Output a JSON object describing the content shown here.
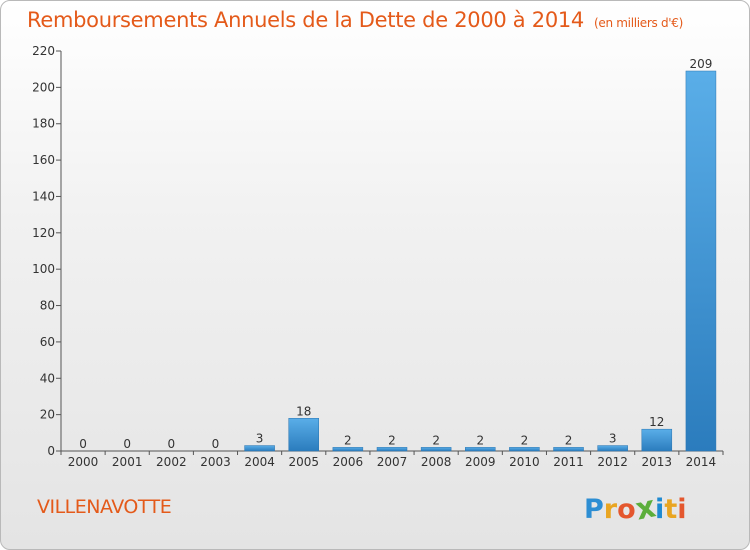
{
  "header": {
    "title": "Remboursements Annuels de la Dette de 2000 à 2014",
    "units": "(en milliers d'€)"
  },
  "footer": {
    "city": "VILLENAVOTTE",
    "logo_letters": [
      "P",
      "r",
      "o",
      "x",
      "i",
      "t",
      "i"
    ],
    "logo_colors": [
      "#2d8ed3",
      "#e9a521",
      "#e4572e",
      "#5cae3b",
      "#1f8ad1",
      "#e9a521",
      "#e4572e"
    ]
  },
  "chart_data": {
    "type": "bar",
    "title": "Remboursements Annuels de la Dette de 2000 à 2014",
    "categories": [
      "2000",
      "2001",
      "2002",
      "2003",
      "2004",
      "2005",
      "2006",
      "2007",
      "2008",
      "2009",
      "2010",
      "2011",
      "2012",
      "2013",
      "2014"
    ],
    "values": [
      0,
      0,
      0,
      0,
      3,
      18,
      2,
      2,
      2,
      2,
      2,
      2,
      3,
      12,
      209
    ],
    "value_labels": [
      "0",
      "0",
      "0",
      "0",
      "3",
      "18",
      "2",
      "2",
      "2",
      "2",
      "2",
      "2",
      "3",
      "12",
      "209"
    ],
    "ylim": [
      0,
      220
    ],
    "yticks": [
      0,
      20,
      40,
      60,
      80,
      100,
      120,
      140,
      160,
      180,
      200,
      220
    ],
    "xlabel": "",
    "ylabel": "",
    "grid": false,
    "bar_color": "#3a8fd1"
  }
}
